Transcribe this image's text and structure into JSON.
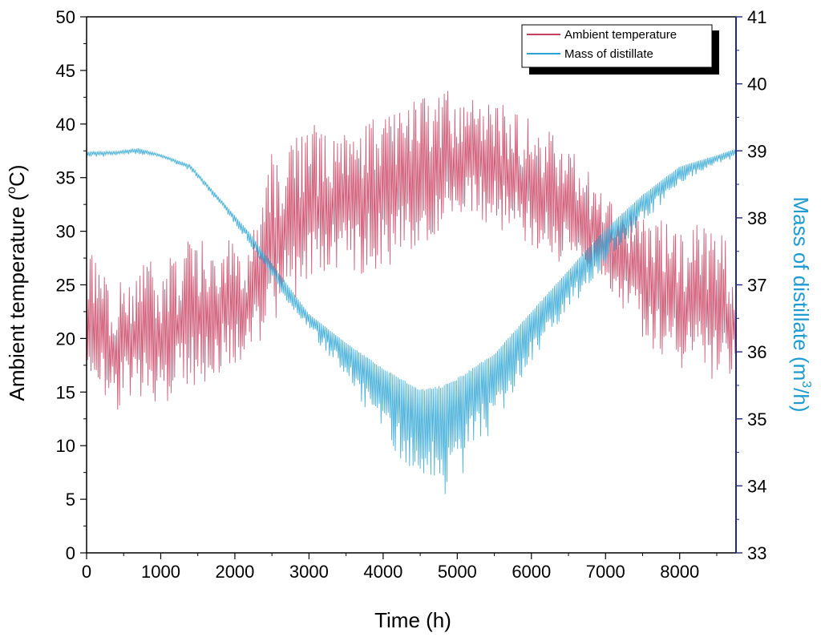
{
  "chart_data": {
    "type": "line",
    "x_label": "Time (h)",
    "y_left_label_main": "Ambient temperature (",
    "y_left_label_sup": "o",
    "y_left_label_end": "C)",
    "y_right_label_main": "Mass of distillate (m",
    "y_right_label_sup": "3",
    "y_right_label_end": "/h)",
    "x_range": [
      0,
      8760
    ],
    "y_left_range": [
      0,
      50
    ],
    "y_right_range": [
      33,
      41
    ],
    "x_ticks": [
      0,
      1000,
      2000,
      3000,
      4000,
      5000,
      6000,
      7000,
      8000
    ],
    "y_left_ticks": [
      0,
      5,
      10,
      15,
      20,
      25,
      30,
      35,
      40,
      45,
      50
    ],
    "y_right_ticks": [
      33,
      34,
      35,
      36,
      37,
      38,
      39,
      40,
      41
    ],
    "legend_position": "top-right",
    "colors": {
      "temperature": "#c8405f",
      "distillate": "#2aa3d3",
      "right_axis": "#1f2a7a",
      "right_title": "#1f9bd0"
    },
    "series": [
      {
        "name": "Ambient temperature",
        "axis": "left",
        "x": [
          0,
          300,
          700,
          1000,
          1400,
          1800,
          2200,
          2500,
          3000,
          3500,
          4000,
          4500,
          5000,
          5500,
          6000,
          6500,
          7000,
          7500,
          8000,
          8500,
          8760
        ],
        "min": [
          16,
          11,
          13,
          12,
          13,
          15,
          17,
          19,
          22,
          24,
          24,
          27,
          29,
          29,
          27,
          25,
          24,
          18,
          15,
          14,
          15
        ],
        "max": [
          30,
          27,
          29,
          29,
          31,
          31,
          30,
          40,
          42,
          42,
          44,
          44,
          45,
          44,
          42,
          40,
          34,
          34,
          32,
          33,
          28
        ]
      },
      {
        "name": "Mass of distillate",
        "axis": "right",
        "x": [
          0,
          400,
          700,
          1000,
          1400,
          1800,
          2200,
          2600,
          3000,
          3500,
          4000,
          4500,
          4800,
          5000,
          5500,
          6000,
          6500,
          7000,
          7500,
          8000,
          8500,
          8760
        ],
        "min": [
          38.9,
          38.92,
          38.95,
          38.9,
          38.7,
          38.2,
          37.6,
          36.9,
          36.3,
          35.6,
          34.6,
          34.1,
          33.8,
          34.0,
          34.9,
          35.8,
          36.6,
          37.3,
          37.9,
          38.5,
          38.8,
          38.9
        ],
        "max": [
          39.0,
          39.0,
          39.05,
          38.95,
          38.8,
          38.3,
          37.8,
          37.2,
          36.6,
          36.2,
          35.9,
          35.6,
          35.7,
          35.8,
          36.1,
          36.7,
          37.3,
          37.9,
          38.4,
          38.8,
          38.95,
          39.05
        ]
      }
    ]
  }
}
